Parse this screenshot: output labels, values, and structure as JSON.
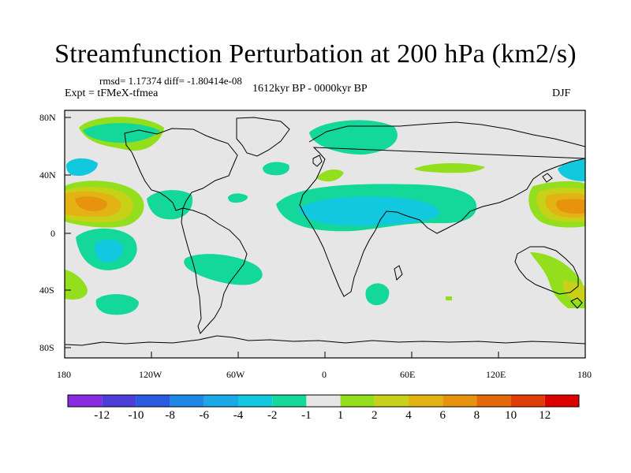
{
  "title": "Streamfunction Perturbation at 200 hPa (km2/s)",
  "stats": "rmsd= 1.17374 diff= -1.80414e-08",
  "experiment": "Expt = tFMeX-tfmea",
  "period": "1612kyr BP - 0000kyr BP",
  "season": "DJF",
  "y_ticks": [
    "80N",
    "40N",
    "0",
    "40S",
    "80S"
  ],
  "x_ticks": [
    "180",
    "120W",
    "60W",
    "0",
    "60E",
    "120E",
    "180"
  ],
  "colorbar": {
    "labels": [
      "-12",
      "-10",
      "-8",
      "-6",
      "-4",
      "-2",
      "-1",
      "1",
      "2",
      "4",
      "6",
      "8",
      "10",
      "12"
    ],
    "colors": [
      "#8a2be2",
      "#4b3fd8",
      "#2a5be0",
      "#1f87e6",
      "#1aa8e8",
      "#12c8df",
      "#14d79a",
      "#e6e6e6",
      "#93df1d",
      "#c6d118",
      "#e2b313",
      "#e7930d",
      "#e56808",
      "#e03e06",
      "#dd0000"
    ]
  },
  "map_colors": {
    "ocean": "#e6e6e6",
    "coast": "#000000"
  }
}
